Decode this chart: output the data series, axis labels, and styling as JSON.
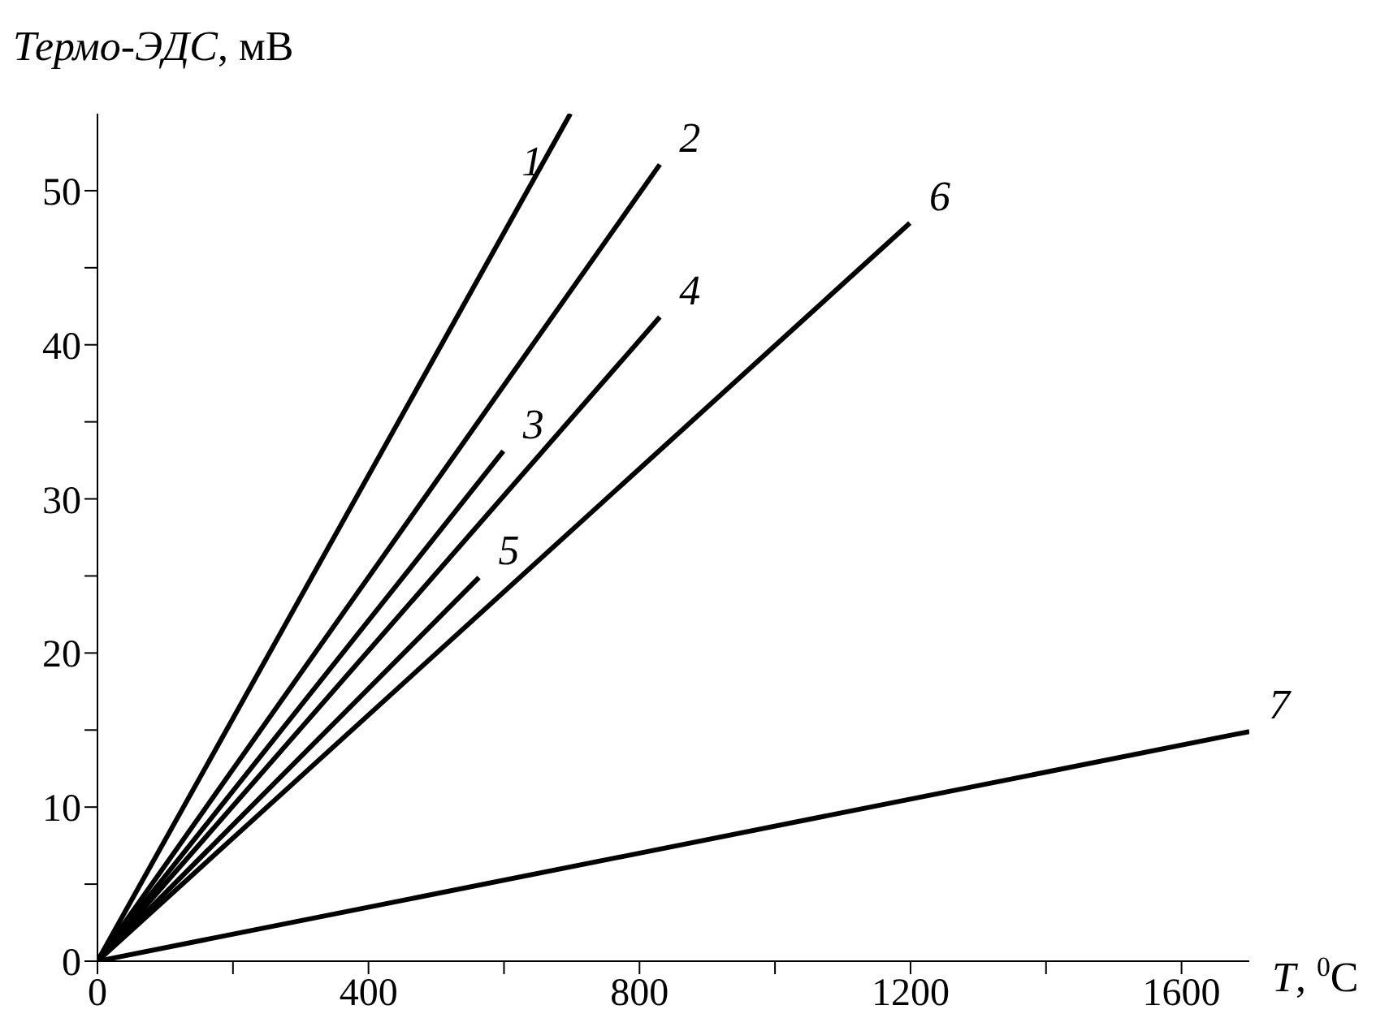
{
  "chart_data": {
    "type": "line",
    "xlabel": "T, $^{0}$C",
    "ylabel": "Термо-ЭДС, мВ",
    "xlim": [
      0,
      1700
    ],
    "ylim": [
      0,
      55
    ],
    "xticks": [
      0,
      {
        "value": 200,
        "label": null
      },
      400,
      {
        "value": 600,
        "label": null
      },
      800,
      {
        "value": 1000,
        "label": null
      },
      1200,
      {
        "value": 1400,
        "label": null
      },
      1600
    ],
    "yticks": [
      0,
      {
        "value": 5,
        "label": null
      },
      10,
      {
        "value": 15,
        "label": null
      },
      20,
      {
        "value": 25,
        "label": null
      },
      30,
      {
        "value": 35,
        "label": null
      },
      40,
      {
        "value": 45,
        "label": null
      },
      50
    ],
    "grid": false,
    "legend": false,
    "series": [
      {
        "name": "1",
        "color": "#000000",
        "x": [
          0,
          698
        ],
        "values": [
          0,
          55
        ]
      },
      {
        "name": "2",
        "color": "#000000",
        "x": [
          0,
          830
        ],
        "values": [
          0,
          51.7
        ]
      },
      {
        "name": "3",
        "color": "#000000",
        "x": [
          0,
          599
        ],
        "values": [
          0,
          33.1
        ]
      },
      {
        "name": "4",
        "color": "#000000",
        "x": [
          0,
          830
        ],
        "values": [
          0,
          41.8
        ]
      },
      {
        "name": "5",
        "color": "#000000",
        "x": [
          0,
          563
        ],
        "values": [
          0,
          24.9
        ]
      },
      {
        "name": "6",
        "color": "#000000",
        "x": [
          0,
          1199
        ],
        "values": [
          0,
          47.9
        ]
      },
      {
        "name": "7",
        "color": "#000000",
        "x": [
          0,
          1700
        ],
        "values": [
          0,
          14.9
        ]
      }
    ]
  }
}
